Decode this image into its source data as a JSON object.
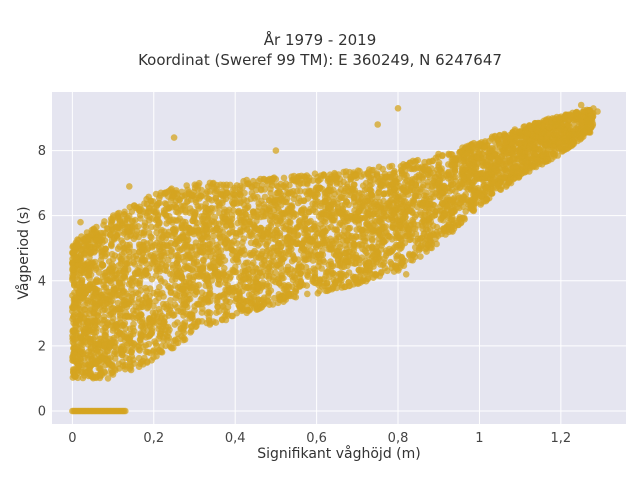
{
  "chart_data": {
    "type": "scatter",
    "title_line1": "År 1979 - 2019",
    "title_line2": "Koordinat (Sweref 99 TM): E 360249, N 6247647",
    "xlabel": "Signifikant våghöjd (m)",
    "ylabel": "Vågperiod (s)",
    "xlim": [
      -0.05,
      1.36
    ],
    "ylim": [
      -0.4,
      9.8
    ],
    "x_ticks": [
      0,
      0.2,
      0.4,
      0.6,
      0.8,
      1,
      1.2
    ],
    "x_tick_labels": [
      "0",
      "0,2",
      "0,4",
      "0,6",
      "0,8",
      "1",
      "1,2"
    ],
    "y_ticks": [
      0,
      2,
      4,
      6,
      8
    ],
    "y_tick_labels": [
      "0",
      "2",
      "4",
      "6",
      "8"
    ],
    "grid": true,
    "legend": "none",
    "colors": {
      "marker": "#D4A420",
      "background": "#E5E5F0",
      "grid": "#ffffff"
    },
    "envelope": [
      {
        "x": 0.0,
        "lower": 1.0,
        "upper": 5.2
      },
      {
        "x": 0.1,
        "lower": 1.0,
        "upper": 6.0
      },
      {
        "x": 0.2,
        "lower": 1.5,
        "upper": 6.7
      },
      {
        "x": 0.3,
        "lower": 2.4,
        "upper": 7.0
      },
      {
        "x": 0.4,
        "lower": 2.9,
        "upper": 7.1
      },
      {
        "x": 0.5,
        "lower": 3.3,
        "upper": 7.2
      },
      {
        "x": 0.6,
        "lower": 3.6,
        "upper": 7.3
      },
      {
        "x": 0.7,
        "lower": 3.9,
        "upper": 7.4
      },
      {
        "x": 0.8,
        "lower": 4.3,
        "upper": 7.6
      },
      {
        "x": 0.9,
        "lower": 5.1,
        "upper": 7.9
      },
      {
        "x": 1.0,
        "lower": 6.3,
        "upper": 8.3
      },
      {
        "x": 1.1,
        "lower": 7.2,
        "upper": 8.7
      },
      {
        "x": 1.2,
        "lower": 7.9,
        "upper": 9.1
      },
      {
        "x": 1.28,
        "lower": 8.6,
        "upper": 9.3
      }
    ],
    "zero_period_band": {
      "x_range": [
        0.0,
        0.13
      ],
      "y": 0
    },
    "outliers": [
      {
        "x": 0.25,
        "y": 8.4
      },
      {
        "x": 0.8,
        "y": 9.3
      },
      {
        "x": 0.75,
        "y": 8.8
      },
      {
        "x": 0.5,
        "y": 8.0
      },
      {
        "x": 1.25,
        "y": 9.4
      },
      {
        "x": 1.29,
        "y": 9.2
      },
      {
        "x": 0.82,
        "y": 4.2
      },
      {
        "x": 0.14,
        "y": 6.9
      },
      {
        "x": 0.02,
        "y": 5.8
      }
    ]
  }
}
